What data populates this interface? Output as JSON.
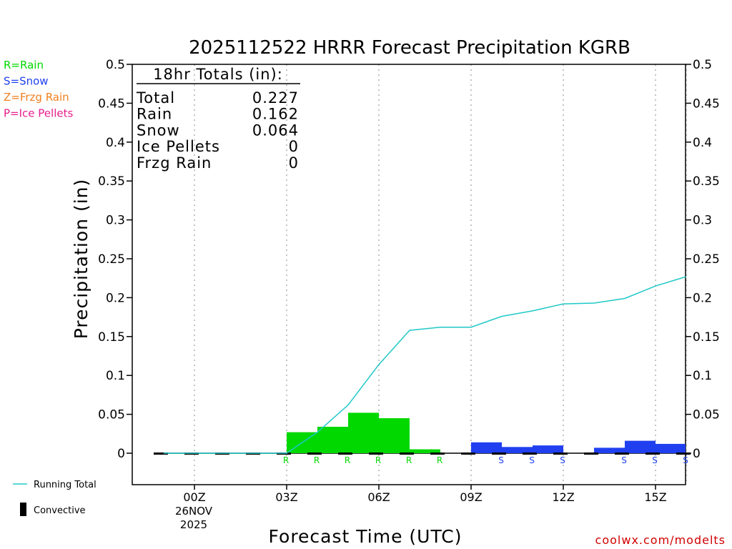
{
  "chart_data": {
    "type": "bar",
    "title": "2025112522 HRRR Forecast Precipitation KGRB",
    "xlabel": "Forecast Time (UTC)",
    "ylabel": "Precipitation (in)",
    "ylim": [
      -0.04,
      0.5
    ],
    "xlim": [
      -1.25,
      16.75
    ],
    "y_ticks": [
      "0",
      "0.05",
      "0.1",
      "0.15",
      "0.2",
      "0.25",
      "0.3",
      "0.35",
      "0.4",
      "0.45",
      "0.5"
    ],
    "x_ticks": [
      {
        "hour": 0,
        "label": "00Z"
      },
      {
        "hour": 3,
        "label": "03Z"
      },
      {
        "hour": 6,
        "label": "06Z"
      },
      {
        "hour": 9,
        "label": "09Z"
      },
      {
        "hour": 12,
        "label": "12Z"
      },
      {
        "hour": 15,
        "label": "15Z"
      }
    ],
    "date_label": [
      "26NOV",
      "2025"
    ],
    "grid": "vertical dotted at 3-hour ticks",
    "hours": [
      -1,
      0,
      1,
      2,
      3,
      4,
      5,
      6,
      7,
      8,
      9,
      10,
      11,
      12,
      13,
      14,
      15,
      16
    ],
    "bars": [
      {
        "hour": 4,
        "type": "R",
        "value": 0.027
      },
      {
        "hour": 5,
        "type": "R",
        "value": 0.034
      },
      {
        "hour": 6,
        "type": "R",
        "value": 0.052
      },
      {
        "hour": 7,
        "type": "R",
        "value": 0.045
      },
      {
        "hour": 8,
        "type": "R",
        "value": 0.005
      },
      {
        "hour": 10,
        "type": "S",
        "value": 0.014
      },
      {
        "hour": 11,
        "type": "S",
        "value": 0.008
      },
      {
        "hour": 12,
        "type": "S",
        "value": 0.01
      },
      {
        "hour": 14,
        "type": "S",
        "value": 0.007
      },
      {
        "hour": 15,
        "type": "S",
        "value": 0.016
      },
      {
        "hour": 16,
        "type": "S",
        "value": 0.012
      }
    ],
    "running_total": [
      [
        -1,
        0
      ],
      [
        0,
        0
      ],
      [
        1,
        0
      ],
      [
        2,
        0
      ],
      [
        3,
        0
      ],
      [
        4,
        0.027
      ],
      [
        5,
        0.062
      ],
      [
        6,
        0.114
      ],
      [
        7,
        0.158
      ],
      [
        8,
        0.162
      ],
      [
        9,
        0.162
      ],
      [
        10,
        0.176
      ],
      [
        11,
        0.183
      ],
      [
        12,
        0.192
      ],
      [
        13,
        0.193
      ],
      [
        14,
        0.199
      ],
      [
        15,
        0.215
      ],
      [
        16,
        0.227
      ]
    ],
    "type_markers": [
      {
        "hour": 3,
        "type": "R"
      },
      {
        "hour": 4,
        "type": "R"
      },
      {
        "hour": 5,
        "type": "R"
      },
      {
        "hour": 6,
        "type": "R"
      },
      {
        "hour": 7,
        "type": "R"
      },
      {
        "hour": 8,
        "type": "R"
      },
      {
        "hour": 10,
        "type": "S"
      },
      {
        "hour": 11,
        "type": "S"
      },
      {
        "hour": 12,
        "type": "S"
      },
      {
        "hour": 14,
        "type": "S"
      },
      {
        "hour": 15,
        "type": "S"
      },
      {
        "hour": 16,
        "type": "S"
      }
    ],
    "totals_box": {
      "heading": "18hr Totals (in):",
      "rows": [
        {
          "label": "Total",
          "value": "0.227"
        },
        {
          "label": "Rain",
          "value": "0.162"
        },
        {
          "label": "Snow",
          "value": "0.064"
        },
        {
          "label": "Ice Pellets",
          "value": "0"
        },
        {
          "label": "Frzg Rain",
          "value": "0"
        }
      ]
    },
    "type_legend": [
      {
        "label": "R=Rain",
        "color": "#00d800"
      },
      {
        "label": "S=Snow",
        "color": "#2040f0"
      },
      {
        "label": "Z=Frzg Rain",
        "color": "#f08020"
      },
      {
        "label": "P=Ice Pellets",
        "color": "#e81e8c"
      }
    ],
    "line_legend": [
      {
        "label": "Running Total",
        "color": "#20c8c8"
      },
      {
        "label": "Convective",
        "color": "#000000"
      }
    ],
    "watermark": "coolwx.com/modelts",
    "colors": {
      "rain": "#00d800",
      "snow": "#2040f0",
      "running_total": "#20c8c8",
      "watermark": "#d00000",
      "axis": "#000000",
      "grid": "#b0b0b0"
    }
  }
}
